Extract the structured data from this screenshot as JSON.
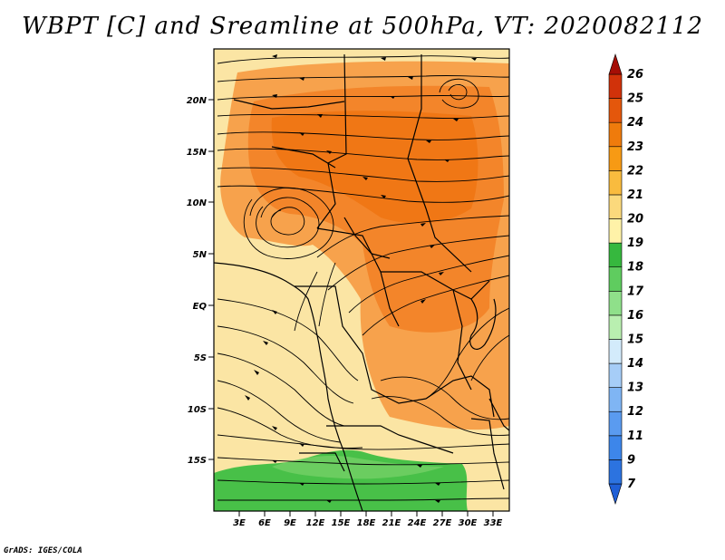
{
  "map": {
    "title": "WBPT [C] and Sreamline at 500hPa, VT: 2020082112",
    "credit": "GrADS: IGES/COLA",
    "lat_ticks": [
      "20N",
      "15N",
      "10N",
      "5N",
      "EQ",
      "5S",
      "10S",
      "15S"
    ],
    "lon_ticks": [
      "3E",
      "6E",
      "9E",
      "12E",
      "15E",
      "18E",
      "21E",
      "24E",
      "27E",
      "30E",
      "33E"
    ]
  },
  "colorbar": {
    "labels": [
      "7",
      "9",
      "11",
      "12",
      "13",
      "14",
      "15",
      "16",
      "17",
      "18",
      "19",
      "20",
      "21",
      "22",
      "23",
      "24",
      "25",
      "26"
    ],
    "colors": [
      "#1f5fd6",
      "#2c73e0",
      "#3d86ea",
      "#5a9bf0",
      "#7fb5f4",
      "#a6cdf7",
      "#d3ebfb",
      "#b9efb0",
      "#8fe08a",
      "#5fcc5f",
      "#36b83e",
      "#fff2a8",
      "#fbd97c",
      "#f9bb3e",
      "#f79a14",
      "#ef7b0c",
      "#e4570c",
      "#d1320a",
      "#a50e06"
    ]
  },
  "colors": {
    "cool_yellow": "#fbe5a4",
    "warm_orange": "#f7a24c",
    "hot_orange": "#f28428",
    "green": "#48c048"
  }
}
